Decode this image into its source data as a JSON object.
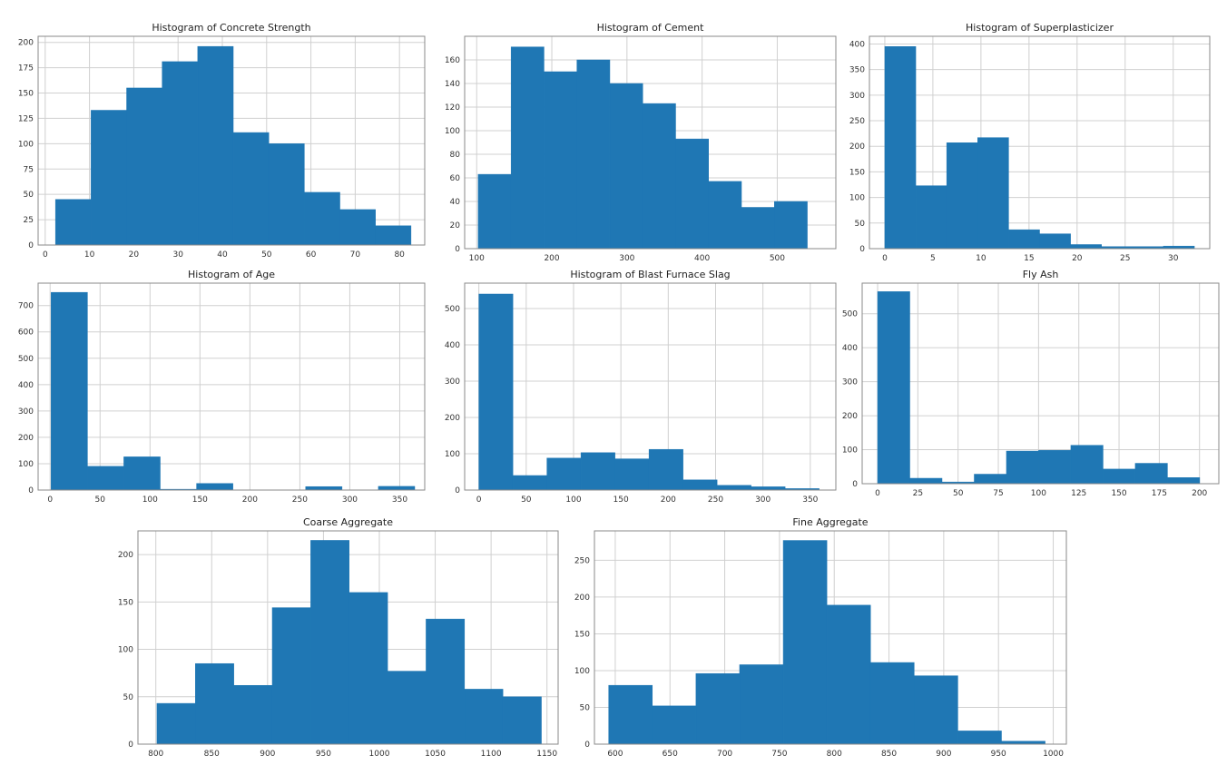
{
  "chart_data": [
    {
      "type": "bar",
      "title": "Histogram of Concrete Strength",
      "bin_edges_range": [
        2.33,
        82.6
      ],
      "values": [
        45,
        133,
        155,
        181,
        196,
        111,
        100,
        52,
        35,
        19
      ],
      "xticks": [
        0,
        10,
        20,
        30,
        40,
        50,
        60,
        70,
        80
      ],
      "yticks": [
        0,
        25,
        50,
        75,
        100,
        125,
        150,
        175,
        200
      ],
      "ylim": [
        0,
        206
      ],
      "xlim": [
        -1.6,
        85.7
      ],
      "grid": true
    },
    {
      "type": "bar",
      "title": "Histogram of Cement",
      "bin_edges_range": [
        102,
        540
      ],
      "values": [
        63,
        171,
        150,
        160,
        140,
        123,
        93,
        57,
        35,
        40
      ],
      "xticks": [
        100,
        200,
        300,
        400,
        500
      ],
      "yticks": [
        0,
        20,
        40,
        60,
        80,
        100,
        120,
        140,
        160
      ],
      "ylim": [
        0,
        180
      ],
      "xlim": [
        84,
        578
      ],
      "grid": true
    },
    {
      "type": "bar",
      "title": "Histogram of Superplasticizer",
      "bin_edges_range": [
        0,
        32.2
      ],
      "values": [
        395,
        123,
        207,
        217,
        37,
        29,
        8,
        4,
        4,
        5
      ],
      "xticks": [
        0,
        5,
        10,
        15,
        20,
        25,
        30
      ],
      "yticks": [
        0,
        50,
        100,
        150,
        200,
        250,
        300,
        350,
        400
      ],
      "ylim": [
        0,
        415
      ],
      "xlim": [
        -1.6,
        33.8
      ],
      "grid": true
    },
    {
      "type": "bar",
      "title": "Histogram of Age",
      "bin_edges_range": [
        1,
        365
      ],
      "values": [
        750,
        90,
        126,
        3,
        25,
        0,
        0,
        13,
        0,
        14
      ],
      "xticks": [
        0,
        50,
        100,
        150,
        200,
        250,
        300,
        350
      ],
      "yticks": [
        0,
        100,
        200,
        300,
        400,
        500,
        600,
        700
      ],
      "ylim": [
        0,
        785
      ],
      "xlim": [
        -12,
        375
      ],
      "grid": true
    },
    {
      "type": "bar",
      "title": "Histogram of Blast Furnace Slag",
      "bin_edges_range": [
        0,
        359.4
      ],
      "values": [
        540,
        40,
        88,
        103,
        86,
        112,
        28,
        13,
        9,
        4
      ],
      "xticks": [
        0,
        50,
        100,
        150,
        200,
        250,
        300,
        350
      ],
      "yticks": [
        0,
        100,
        200,
        300,
        400,
        500
      ],
      "ylim": [
        0,
        570
      ],
      "xlim": [
        -15,
        377
      ],
      "grid": true
    },
    {
      "type": "bar",
      "title": "Fly Ash",
      "bin_edges_range": [
        0,
        200.1
      ],
      "values": [
        565,
        16,
        5,
        28,
        96,
        98,
        113,
        43,
        60,
        18
      ],
      "xticks": [
        0,
        25,
        50,
        75,
        100,
        125,
        150,
        175,
        200
      ],
      "yticks": [
        0,
        100,
        200,
        300,
        400,
        500
      ],
      "ylim": [
        0,
        590
      ],
      "xlim": [
        -9.6,
        212
      ],
      "grid": true
    },
    {
      "type": "bar",
      "title": "Coarse Aggregate",
      "bin_edges_range": [
        801,
        1145
      ],
      "values": [
        43,
        85,
        62,
        144,
        215,
        160,
        77,
        132,
        58,
        50
      ],
      "xticks": [
        800,
        850,
        900,
        950,
        1000,
        1050,
        1100,
        1150
      ],
      "yticks": [
        0,
        50,
        100,
        150,
        200
      ],
      "ylim": [
        0,
        225
      ],
      "xlim": [
        784,
        1160
      ],
      "grid": true
    },
    {
      "type": "bar",
      "title": "Fine Aggregate",
      "bin_edges_range": [
        594,
        992.6
      ],
      "values": [
        80,
        52,
        96,
        108,
        277,
        189,
        111,
        93,
        18,
        4
      ],
      "xticks": [
        600,
        650,
        700,
        750,
        800,
        850,
        900,
        950,
        1000
      ],
      "yticks": [
        0,
        50,
        100,
        150,
        200,
        250
      ],
      "ylim": [
        0,
        290
      ],
      "xlim": [
        581,
        1012
      ],
      "grid": true
    }
  ]
}
